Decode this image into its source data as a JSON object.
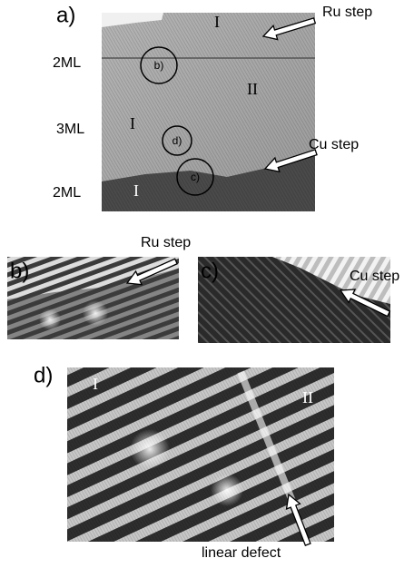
{
  "panel_a": {
    "label": "a)",
    "ru_step": "Ru step",
    "cu_step": "Cu step",
    "layer_labels": [
      "2ML",
      "3ML",
      "2ML"
    ],
    "domain_labels": [
      "I",
      "II",
      "I",
      "I"
    ],
    "inset_labels": [
      "b)",
      "d)",
      "c)"
    ]
  },
  "panel_b": {
    "label": "b)",
    "annotation": "Ru step"
  },
  "panel_c": {
    "label": "c)",
    "annotation": "Cu step"
  },
  "panel_d": {
    "label": "d)",
    "domain_labels": [
      "I",
      "II"
    ],
    "annotation": "linear defect"
  }
}
